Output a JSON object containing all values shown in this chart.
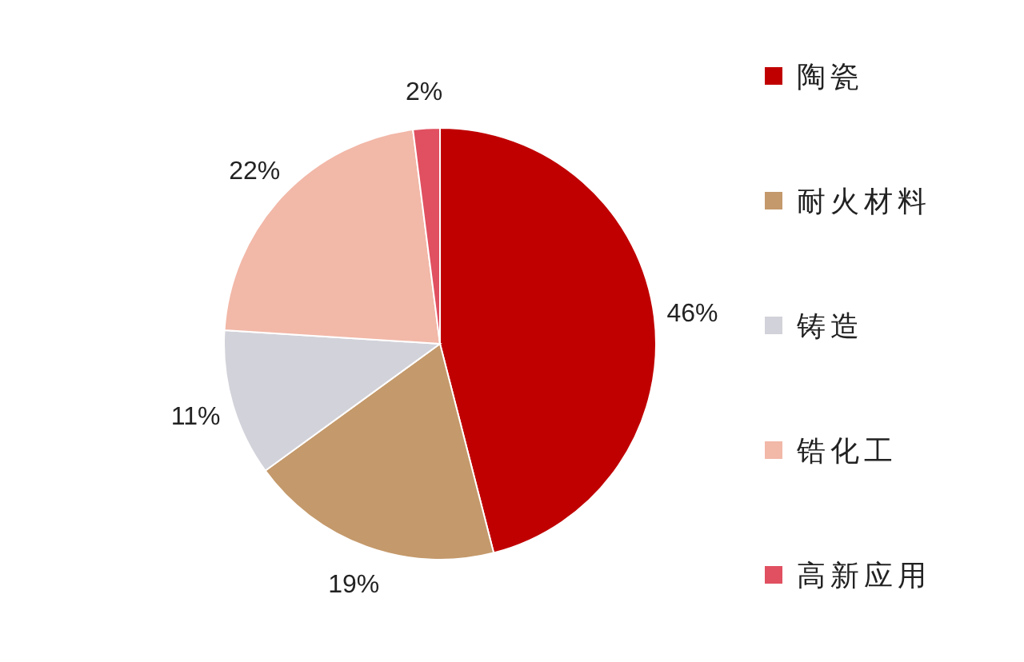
{
  "chart_data": {
    "type": "pie",
    "categories": [
      "陶瓷",
      "耐火材料",
      "铸造",
      "锆化工",
      "高新应用"
    ],
    "values": [
      46,
      19,
      11,
      22,
      2
    ],
    "value_labels": [
      "46%",
      "19%",
      "11%",
      "22%",
      "2%"
    ],
    "colors": [
      "#c00000",
      "#c4996b",
      "#d2d2da",
      "#f2b8a8",
      "#e05060"
    ],
    "legend": "right"
  }
}
